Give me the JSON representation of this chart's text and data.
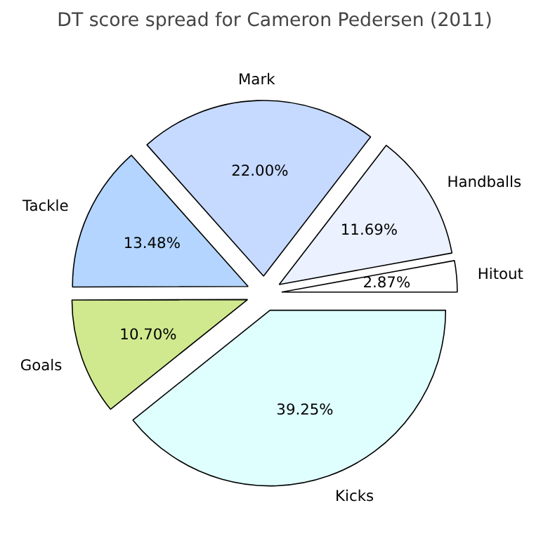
{
  "chart_data": {
    "type": "pie",
    "title": "DT score spread for Cameron Pedersen (2011)",
    "categories": [
      "Hitout",
      "Handballs",
      "Mark",
      "Tackle",
      "Goals",
      "Kicks"
    ],
    "values": [
      2.87,
      11.69,
      22.0,
      13.48,
      10.7,
      39.25
    ],
    "value_labels": [
      "2.87%",
      "11.69%",
      "22.00%",
      "13.48%",
      "10.70%",
      "39.25%"
    ],
    "colors": [
      "#ffffff",
      "#ebf1ff",
      "#c6d9ff",
      "#b3d5ff",
      "#d0e98e",
      "#dfffff"
    ]
  }
}
